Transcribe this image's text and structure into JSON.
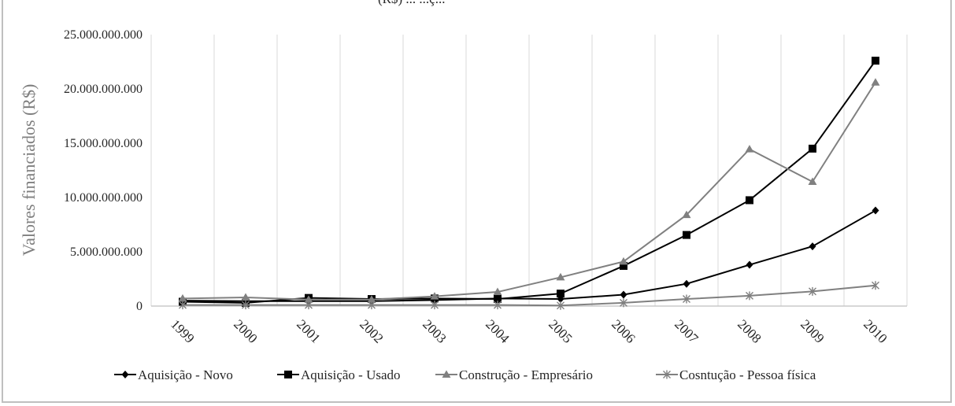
{
  "title_fragment": "(R$) ... ...ç...",
  "chart_data": {
    "type": "line",
    "title": "",
    "xlabel": "",
    "ylabel": "Valores financiados (R$)",
    "ylim": [
      0,
      25000000000
    ],
    "yticks": [
      0,
      5000000000,
      10000000000,
      15000000000,
      20000000000,
      25000000000
    ],
    "ytick_labels": [
      "0",
      "5.000.000.000",
      "10.000.000.000",
      "15.000.000.000",
      "20.000.000.000",
      "25.000.000.000"
    ],
    "categories": [
      "1999",
      "2000",
      "2001",
      "2002",
      "2003",
      "2004",
      "2005",
      "2006",
      "2007",
      "2008",
      "2009",
      "2010"
    ],
    "grid": "vertical",
    "legend_position": "bottom",
    "series": [
      {
        "name": "Aquisição - Novo",
        "color": "#000000",
        "marker": "diamond",
        "values": [
          500000000,
          450000000,
          450000000,
          450000000,
          550000000,
          700000000,
          650000000,
          1050000000,
          2050000000,
          3800000000,
          5500000000,
          8800000000
        ]
      },
      {
        "name": "Aquisição - Usado",
        "color": "#000000",
        "marker": "square",
        "values": [
          400000000,
          300000000,
          750000000,
          650000000,
          700000000,
          650000000,
          1150000000,
          3700000000,
          6550000000,
          9750000000,
          14500000000,
          22600000000
        ]
      },
      {
        "name": "Construção - Empresário",
        "color": "#808080",
        "marker": "triangle",
        "values": [
          700000000,
          800000000,
          600000000,
          600000000,
          900000000,
          1300000000,
          2650000000,
          4100000000,
          8400000000,
          14450000000,
          11450000000,
          20600000000
        ]
      },
      {
        "name": "Cosntução - Pessoa física",
        "color": "#808080",
        "marker": "star",
        "values": [
          100000000,
          100000000,
          100000000,
          100000000,
          100000000,
          100000000,
          50000000,
          300000000,
          650000000,
          950000000,
          1350000000,
          1900000000
        ]
      }
    ]
  }
}
